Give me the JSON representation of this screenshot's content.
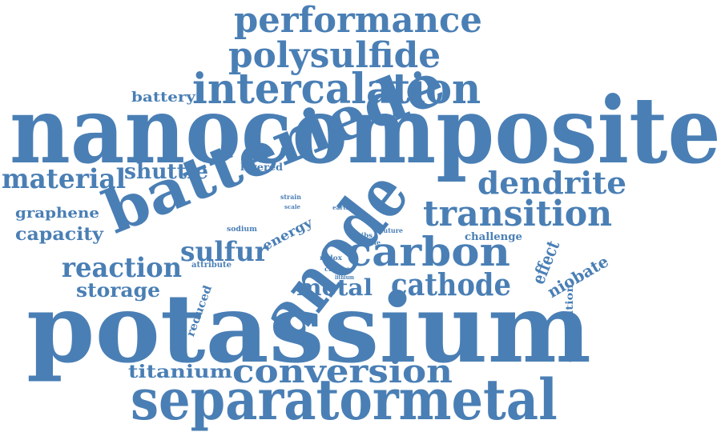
{
  "colors": {
    "word": "#4a7fb5",
    "background": "#ffffff"
  },
  "words": [
    {
      "key": "nanocomposite",
      "text": "nanocomposite"
    },
    {
      "key": "potassium",
      "text": "potassium"
    },
    {
      "key": "separatormetal",
      "text": "separatormetal"
    },
    {
      "key": "batteriede",
      "text": "batteriede"
    },
    {
      "key": "anode",
      "text": "anode"
    },
    {
      "key": "intercalation",
      "text": "intercalation"
    },
    {
      "key": "performance",
      "text": "performance"
    },
    {
      "key": "polysulfide",
      "text": "polysulfide"
    },
    {
      "key": "transition",
      "text": "transition"
    },
    {
      "key": "carbon",
      "text": "carbon"
    },
    {
      "key": "cathode",
      "text": "cathode"
    },
    {
      "key": "conversion",
      "text": "conversion"
    },
    {
      "key": "dendrite",
      "text": "dendrite"
    },
    {
      "key": "material",
      "text": "material"
    },
    {
      "key": "shuttle",
      "text": "shuttle"
    },
    {
      "key": "reaction",
      "text": "reaction"
    },
    {
      "key": "sulfur",
      "text": "sulfur"
    },
    {
      "key": "storage",
      "text": "storage"
    },
    {
      "key": "metal",
      "text": "metal"
    },
    {
      "key": "titanium",
      "text": "titanium"
    },
    {
      "key": "capacity",
      "text": "capacity"
    },
    {
      "key": "graphene",
      "text": "graphene"
    },
    {
      "key": "battery",
      "text": "battery"
    },
    {
      "key": "energy",
      "text": "energy"
    },
    {
      "key": "effect",
      "text": "effect"
    },
    {
      "key": "niobate",
      "text": "niobate"
    },
    {
      "key": "layered",
      "text": "layered"
    },
    {
      "key": "challenge",
      "text": "challenge"
    },
    {
      "key": "distribution",
      "text": "distribution"
    },
    {
      "key": "reduced",
      "text": "reduced"
    },
    {
      "key": "sodium",
      "text": "sodium"
    },
    {
      "key": "attribute",
      "text": "attribute"
    },
    {
      "key": "redox",
      "text": "redox"
    },
    {
      "key": "charge",
      "text": "charge"
    },
    {
      "key": "lithium",
      "text": "lithium"
    },
    {
      "key": "kibs",
      "text": "kibs"
    },
    {
      "key": "viable",
      "text": "viable"
    },
    {
      "key": "future",
      "text": "future"
    },
    {
      "key": "strain",
      "text": "strain"
    },
    {
      "key": "scale",
      "text": "scale"
    },
    {
      "key": "earth",
      "text": "earth"
    }
  ]
}
